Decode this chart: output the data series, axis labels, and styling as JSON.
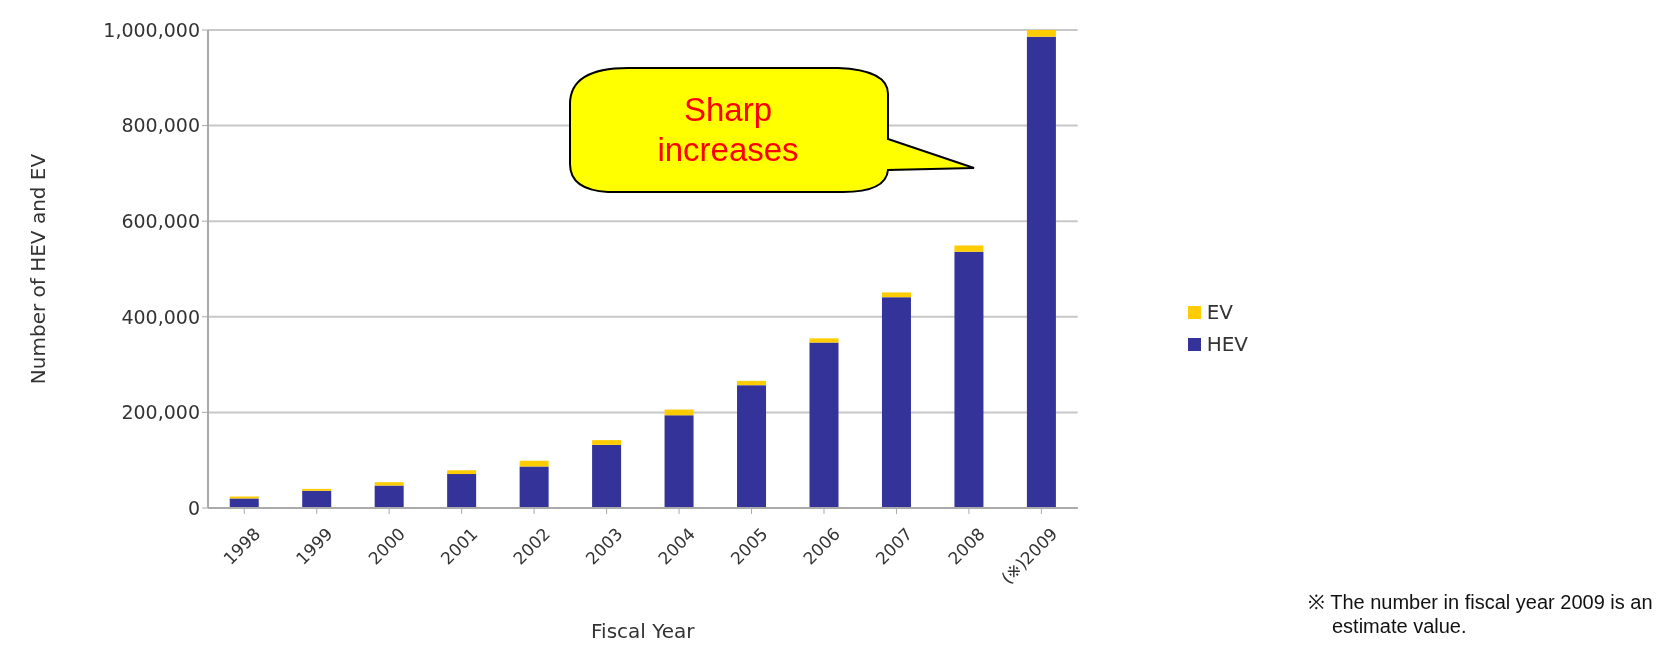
{
  "chart_data": {
    "type": "bar",
    "stacked": true,
    "xlabel": "Fiscal Year",
    "ylabel": "Number of HEV and EV",
    "categories": [
      "1998",
      "1999",
      "2000",
      "2001",
      "2002",
      "2003",
      "2004",
      "2005",
      "2006",
      "2007",
      "2008",
      "(※)2009"
    ],
    "series": [
      {
        "name": "HEV",
        "color": "#333399",
        "values": [
          20000,
          36000,
          47000,
          71000,
          87000,
          132000,
          194000,
          257000,
          346000,
          441000,
          536000,
          986000
        ]
      },
      {
        "name": "EV",
        "color": "#ffcc00",
        "values": [
          4000,
          4000,
          7000,
          8000,
          12000,
          10000,
          12000,
          9000,
          9000,
          10000,
          13000,
          14000
        ]
      }
    ],
    "ylim": [
      0,
      1000000
    ],
    "yticks": [
      0,
      {
        "value": 200000,
        "label": "200,000"
      },
      {
        "value": 400000,
        "label": "400,000"
      },
      {
        "value": 600000,
        "label": "600,000"
      },
      {
        "value": 800000,
        "label": "800,000"
      },
      {
        "value": 1000000,
        "label": "1,000,000"
      }
    ],
    "grid": "y",
    "legend": "right",
    "annotations": [
      "Sharp increases",
      "※ The number in fiscal year 2009 is an estimate value."
    ]
  }
}
